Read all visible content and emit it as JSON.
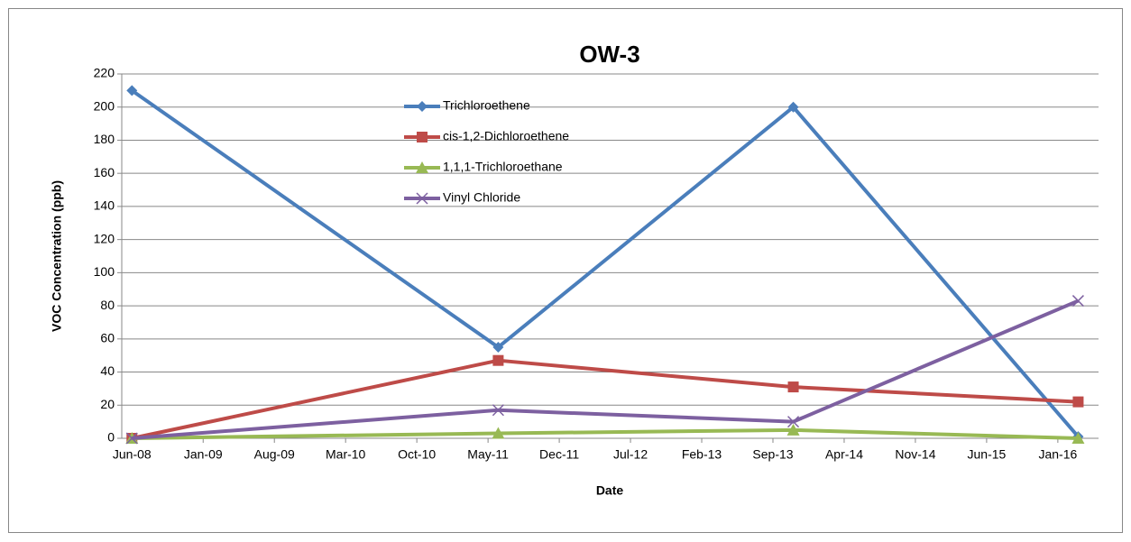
{
  "chart_data": {
    "type": "line",
    "title": "OW-3",
    "x_label": "Date",
    "y_label": "VOC Concentration (ppb)",
    "x": [
      "Jun-08",
      "Jun-11",
      "Nov-13",
      "Mar-16"
    ],
    "series": [
      {
        "name": "Trichloroethene",
        "color": "#4a7ebb",
        "marker": "diamond",
        "values": [
          210,
          55,
          200,
          1
        ]
      },
      {
        "name": "cis-1,2-Dichloroethene",
        "color": "#be4b48",
        "marker": "square",
        "values": [
          0,
          47,
          31,
          22
        ]
      },
      {
        "name": "1,1,1-Trichloroethane",
        "color": "#98b954",
        "marker": "triangle",
        "values": [
          0,
          3,
          5,
          0
        ]
      },
      {
        "name": "Vinyl Chloride",
        "color": "#7d60a0",
        "marker": "x",
        "values": [
          0,
          17,
          10,
          83
        ]
      }
    ],
    "xlim": [
      "May-08",
      "May-16"
    ],
    "xticks": [
      "Jun-08",
      "Jan-09",
      "Aug-09",
      "Mar-10",
      "Oct-10",
      "May-11",
      "Dec-11",
      "Jul-12",
      "Feb-13",
      "Sep-13",
      "Apr-14",
      "Nov-14",
      "Jun-15",
      "Jan-16"
    ],
    "ylim": [
      0,
      220
    ],
    "yticks": [
      0,
      20,
      40,
      60,
      80,
      100,
      120,
      140,
      160,
      180,
      200,
      220
    ],
    "grid": true,
    "legend": "top-center"
  }
}
